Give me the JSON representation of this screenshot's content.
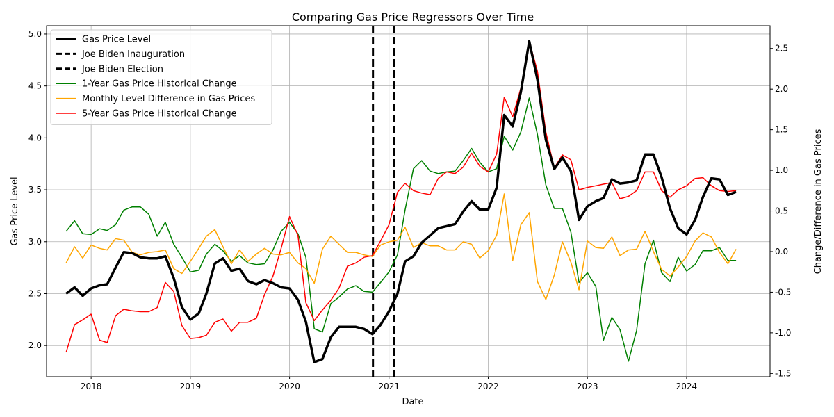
{
  "chart_data": {
    "type": "line",
    "title": "Comparing Gas Price Regressors Over Time",
    "xlabel": "Date",
    "ylabel": "Gas Price Level",
    "ylabel_right": "Change/Difference in Gas Prices",
    "x_tick_labels": [
      "2018",
      "2019",
      "2020",
      "2021",
      "2022",
      "2023",
      "2024"
    ],
    "y_left_ticks": [
      "2.0",
      "2.5",
      "3.0",
      "3.5",
      "4.0",
      "4.5",
      "5.0"
    ],
    "y_right_ticks": [
      "-1.5",
      "-1.0",
      "-0.5",
      "0.0",
      "0.5",
      "1.0",
      "1.5",
      "2.0",
      "2.5"
    ],
    "ylim_left": [
      1.7,
      5.08
    ],
    "ylim_right": [
      -1.54,
      2.78
    ],
    "xlim": [
      "2017-07-21",
      "2024-11-03"
    ],
    "grid": true,
    "legend_position": "upper left",
    "vlines": [
      {
        "label": "Joe Biden Inauguration",
        "date": "2020-11-03",
        "color": "#000000"
      },
      {
        "label": "Joe Biden Election",
        "date": "2021-01-20",
        "color": "#000000"
      }
    ],
    "x": [
      "2017-10-01",
      "2017-11-01",
      "2017-12-01",
      "2018-01-01",
      "2018-02-01",
      "2018-03-01",
      "2018-04-01",
      "2018-05-01",
      "2018-06-01",
      "2018-07-01",
      "2018-08-01",
      "2018-09-01",
      "2018-10-01",
      "2018-11-01",
      "2018-12-01",
      "2019-01-01",
      "2019-02-01",
      "2019-03-01",
      "2019-04-01",
      "2019-05-01",
      "2019-06-01",
      "2019-07-01",
      "2019-08-01",
      "2019-09-01",
      "2019-10-01",
      "2019-11-01",
      "2019-12-01",
      "2020-01-01",
      "2020-02-01",
      "2020-03-01",
      "2020-04-01",
      "2020-05-01",
      "2020-06-01",
      "2020-07-01",
      "2020-08-01",
      "2020-09-01",
      "2020-10-01",
      "2020-11-01",
      "2020-12-01",
      "2021-01-01",
      "2021-02-01",
      "2021-03-01",
      "2021-04-01",
      "2021-05-01",
      "2021-06-01",
      "2021-07-01",
      "2021-08-01",
      "2021-09-01",
      "2021-10-01",
      "2021-11-01",
      "2021-12-01",
      "2022-01-01",
      "2022-02-01",
      "2022-03-01",
      "2022-04-01",
      "2022-05-01",
      "2022-06-01",
      "2022-07-01",
      "2022-08-01",
      "2022-09-01",
      "2022-10-01",
      "2022-11-01",
      "2022-12-01",
      "2023-01-01",
      "2023-02-01",
      "2023-03-01",
      "2023-04-01",
      "2023-05-01",
      "2023-06-01",
      "2023-07-01",
      "2023-08-01",
      "2023-09-01",
      "2023-10-01",
      "2023-11-01",
      "2023-12-01",
      "2024-01-01",
      "2024-02-01",
      "2024-03-01",
      "2024-04-01",
      "2024-05-01",
      "2024-06-01",
      "2024-07-01"
    ],
    "series": [
      {
        "name": "Gas Price Level",
        "axis": "left",
        "color": "#000000",
        "width": 3.5,
        "values": [
          2.5,
          2.56,
          2.48,
          2.55,
          2.58,
          2.59,
          2.75,
          2.9,
          2.89,
          2.85,
          2.84,
          2.84,
          2.86,
          2.65,
          2.37,
          2.25,
          2.31,
          2.5,
          2.79,
          2.84,
          2.72,
          2.74,
          2.62,
          2.59,
          2.63,
          2.6,
          2.56,
          2.55,
          2.44,
          2.23,
          1.84,
          1.87,
          2.08,
          2.18,
          2.18,
          2.18,
          2.16,
          2.11,
          2.2,
          2.33,
          2.5,
          2.81,
          2.86,
          2.99,
          3.06,
          3.13,
          3.15,
          3.17,
          3.29,
          3.39,
          3.31,
          3.31,
          3.52,
          4.22,
          4.11,
          4.44,
          4.93,
          4.56,
          3.98,
          3.7,
          3.81,
          3.68,
          3.21,
          3.34,
          3.39,
          3.42,
          3.6,
          3.56,
          3.57,
          3.59,
          3.84,
          3.84,
          3.62,
          3.32,
          3.13,
          3.07,
          3.21,
          3.43,
          3.61,
          3.6,
          3.45,
          3.48
        ]
      },
      {
        "name": "1-Year Gas Price Historical Change",
        "axis": "right",
        "color": "#008000",
        "width": 1.5,
        "values": [
          0.25,
          0.38,
          0.22,
          0.21,
          0.28,
          0.26,
          0.33,
          0.51,
          0.55,
          0.55,
          0.46,
          0.19,
          0.36,
          0.09,
          -0.07,
          -0.25,
          -0.23,
          -0.03,
          0.09,
          0.01,
          -0.12,
          -0.05,
          -0.14,
          -0.16,
          -0.15,
          0.02,
          0.25,
          0.36,
          0.22,
          -0.07,
          -0.95,
          -0.99,
          -0.64,
          -0.56,
          -0.46,
          -0.42,
          -0.49,
          -0.5,
          -0.38,
          -0.25,
          -0.04,
          0.51,
          1.02,
          1.12,
          0.99,
          0.96,
          0.98,
          0.99,
          1.12,
          1.27,
          1.1,
          0.98,
          1.02,
          1.42,
          1.25,
          1.47,
          1.89,
          1.44,
          0.82,
          0.53,
          0.53,
          0.24,
          -0.38,
          -0.26,
          -0.43,
          -1.09,
          -0.81,
          -0.96,
          -1.35,
          -0.97,
          -0.15,
          0.14,
          -0.26,
          -0.37,
          -0.07,
          -0.24,
          -0.16,
          0.01,
          0.01,
          0.05,
          -0.11,
          -0.11
        ]
      },
      {
        "name": "Monthly Level Difference in Gas Prices",
        "axis": "right",
        "color": "#ffa500",
        "width": 1.5,
        "values": [
          -0.14,
          0.06,
          -0.08,
          0.08,
          0.04,
          0.02,
          0.16,
          0.14,
          -0.01,
          -0.04,
          -0.01,
          0.0,
          0.02,
          -0.21,
          -0.27,
          -0.12,
          0.04,
          0.19,
          0.27,
          0.06,
          -0.15,
          0.02,
          -0.12,
          -0.03,
          0.04,
          -0.03,
          -0.04,
          -0.01,
          -0.14,
          -0.21,
          -0.39,
          0.03,
          0.19,
          0.09,
          -0.01,
          -0.01,
          -0.04,
          -0.06,
          0.08,
          0.12,
          0.14,
          0.3,
          0.05,
          0.11,
          0.07,
          0.07,
          0.02,
          0.02,
          0.12,
          0.09,
          -0.08,
          0.01,
          0.2,
          0.71,
          -0.11,
          0.33,
          0.48,
          -0.37,
          -0.59,
          -0.29,
          0.12,
          -0.13,
          -0.47,
          0.13,
          0.05,
          0.04,
          0.18,
          -0.05,
          0.02,
          0.03,
          0.25,
          0.0,
          -0.22,
          -0.3,
          -0.19,
          -0.06,
          0.13,
          0.23,
          0.18,
          -0.01,
          -0.15,
          0.03
        ]
      },
      {
        "name": "5-Year Gas Price Historical Change",
        "axis": "right",
        "color": "#ff0000",
        "width": 1.5,
        "values": [
          -1.24,
          -0.9,
          -0.84,
          -0.77,
          -1.09,
          -1.12,
          -0.79,
          -0.71,
          -0.73,
          -0.74,
          -0.74,
          -0.69,
          -0.38,
          -0.49,
          -0.91,
          -1.07,
          -1.06,
          -1.03,
          -0.87,
          -0.83,
          -0.98,
          -0.87,
          -0.87,
          -0.82,
          -0.53,
          -0.3,
          0.04,
          0.43,
          0.2,
          -0.63,
          -0.85,
          -0.72,
          -0.6,
          -0.45,
          -0.18,
          -0.14,
          -0.07,
          -0.05,
          0.13,
          0.33,
          0.73,
          0.84,
          0.75,
          0.72,
          0.7,
          0.9,
          0.98,
          0.96,
          1.04,
          1.21,
          1.05,
          0.98,
          1.2,
          1.9,
          1.66,
          2.01,
          2.59,
          2.22,
          1.47,
          1.03,
          1.19,
          1.13,
          0.76,
          0.79,
          0.81,
          0.83,
          0.85,
          0.65,
          0.68,
          0.75,
          0.98,
          0.98,
          0.75,
          0.67,
          0.76,
          0.81,
          0.9,
          0.91,
          0.81,
          0.75,
          0.74,
          0.75
        ]
      }
    ]
  }
}
